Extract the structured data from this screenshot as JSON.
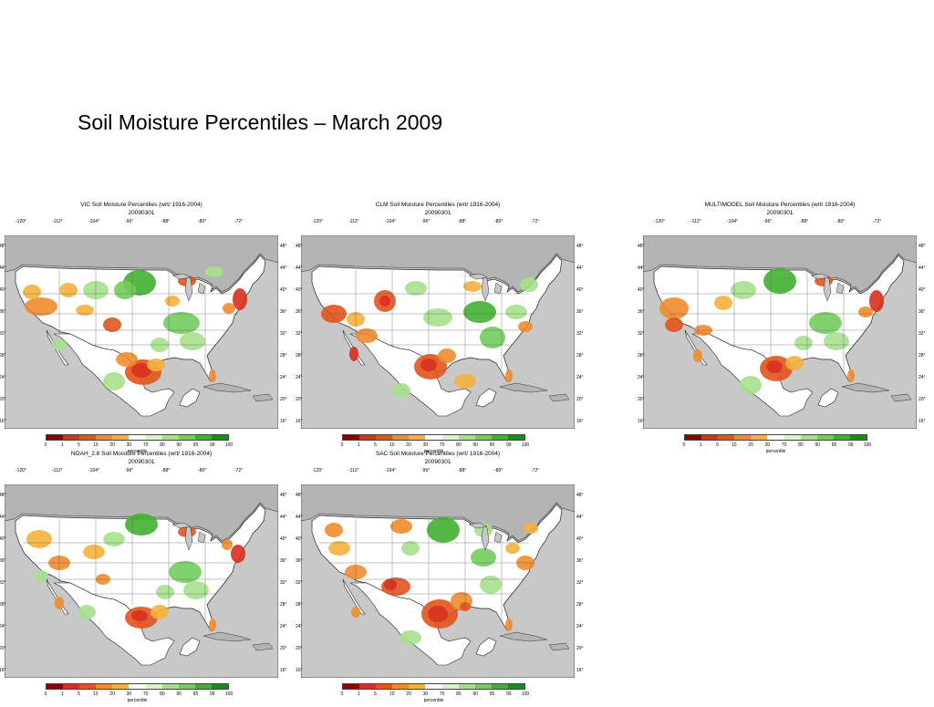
{
  "slide_title": "Soil Moisture Percentiles – March 2009",
  "panels": [
    {
      "title": "VIC Soil Moisture Percentiles (wrt/ 1916-2004)",
      "date": "20090301"
    },
    {
      "title": "CLM Soil Moisture Percentiles (wrt/ 1916-2004)",
      "date": "20090301"
    },
    {
      "title": "MULTIMODEL Soil Moisture Percentiles (wrt/ 1916-2004)",
      "date": "20090301"
    },
    {
      "title": "NOAH_2.8 Soil Moisture Percentiles (wrt/ 1916-2004)",
      "date": "20090301"
    },
    {
      "title": "SAC Soil Moisture Percentiles (wrt/ 1916-2004)",
      "date": "20090301"
    }
  ],
  "lon_labels": [
    "-120°",
    "-112°",
    "-104°",
    "-96°",
    "-88°",
    "-80°",
    "-72°"
  ],
  "lat_labels": [
    "48°",
    "44°",
    "40°",
    "36°",
    "32°",
    "28°",
    "24°",
    "20°",
    "16°"
  ],
  "legend": {
    "ticks": [
      "0",
      "1",
      "5",
      "10",
      "20",
      "30",
      "70",
      "80",
      "90",
      "95",
      "99",
      "100"
    ],
    "caption": "percentile",
    "colors": [
      "#8b0000",
      "#d7301f",
      "#e2541c",
      "#f08b2c",
      "#f5b13d",
      "#ffffff",
      "#d9f2cc",
      "#a6e08c",
      "#73cc5c",
      "#41b031",
      "#1a8c1a"
    ]
  }
}
